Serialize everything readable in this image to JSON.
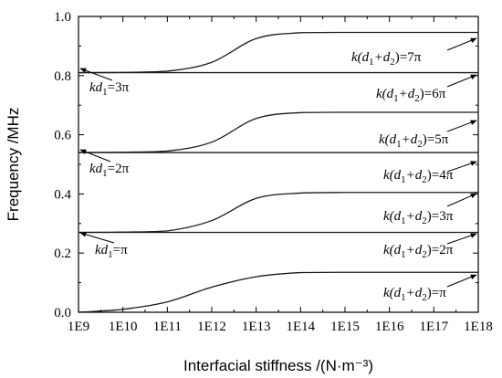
{
  "chart_data": {
    "type": "line",
    "title": "",
    "xlabel": "Interfacial stiffness /(N·m⁻³)",
    "ylabel": "Frequency /MHz",
    "xscale": "log",
    "xlim": [
      1000000000.0,
      1e+18
    ],
    "ylim": [
      0.0,
      1.0
    ],
    "grid": false,
    "x_tick_labels": [
      "1E9",
      "1E10",
      "1E11",
      "1E12",
      "1E13",
      "1E14",
      "1E15",
      "1E16",
      "1E17",
      "1E18"
    ],
    "y_tick_labels": [
      "0.0",
      "0.2",
      "0.4",
      "0.6",
      "0.8",
      "1.0"
    ],
    "series": [
      {
        "x": [
          1000000000.0,
          10000000000.0,
          100000000000.0,
          1000000000000.0,
          10000000000000.0,
          100000000000000.0,
          1000000000000000.0,
          1e+16,
          1e+17,
          1e+18
        ],
        "y": [
          0.0,
          0.01,
          0.035,
          0.085,
          0.12,
          0.134,
          0.135,
          0.135,
          0.135,
          0.135
        ]
      },
      {
        "x": [
          1000000000.0,
          1e+18
        ],
        "y": [
          0.27,
          0.27
        ]
      },
      {
        "x": [
          1000000000.0,
          10000000000.0,
          100000000000.0,
          1000000000000.0,
          10000000000000.0,
          100000000000000.0,
          1000000000000000.0,
          1e+16,
          1e+17,
          1e+18
        ],
        "y": [
          0.27,
          0.271,
          0.275,
          0.31,
          0.385,
          0.403,
          0.405,
          0.405,
          0.405,
          0.405
        ]
      },
      {
        "x": [
          1000000000.0,
          1e+18
        ],
        "y": [
          0.54,
          0.54
        ]
      },
      {
        "x": [
          1000000000.0,
          10000000000.0,
          100000000000.0,
          1000000000000.0,
          10000000000000.0,
          100000000000000.0,
          1000000000000000.0,
          1e+16,
          1e+17,
          1e+18
        ],
        "y": [
          0.54,
          0.541,
          0.545,
          0.575,
          0.655,
          0.675,
          0.676,
          0.676,
          0.676,
          0.676
        ]
      },
      {
        "x": [
          1000000000.0,
          1e+18
        ],
        "y": [
          0.81,
          0.81
        ]
      },
      {
        "x": [
          1000000000.0,
          10000000000.0,
          100000000000.0,
          1000000000000.0,
          10000000000000.0,
          100000000000000.0,
          1000000000000000.0,
          1e+16,
          1e+17,
          1e+18
        ],
        "y": [
          0.81,
          0.811,
          0.815,
          0.845,
          0.925,
          0.945,
          0.946,
          0.946,
          0.946,
          0.946
        ]
      }
    ],
    "annotations": [
      {
        "parts": [
          [
            "k",
            ""
          ],
          [
            "d",
            "sub"
          ],
          [
            "1",
            ""
          ],
          [
            "=3π",
            "up"
          ]
        ],
        "sample": "kd1=3π"
      },
      {
        "parts": [
          [
            "k",
            ""
          ],
          [
            "d",
            "sub"
          ],
          [
            "1",
            ""
          ],
          [
            "=2π",
            "up"
          ]
        ],
        "sample": "kd1=2π"
      },
      {
        "parts": [
          [
            "k",
            ""
          ],
          [
            "d",
            "sub"
          ],
          [
            "1",
            ""
          ],
          [
            "=π",
            "up"
          ]
        ],
        "sample": "kd1=π"
      },
      {
        "parts": [
          [
            "k(",
            ""
          ],
          [
            "d",
            "sub"
          ],
          [
            "1",
            ""
          ],
          [
            "+",
            ""
          ],
          [
            "d",
            "sub"
          ],
          [
            "2",
            ""
          ],
          [
            ")=7π",
            "up"
          ]
        ],
        "sample": "k(d1+d2)=7π"
      },
      {
        "parts": [
          [
            "k(",
            ""
          ],
          [
            "d",
            "sub"
          ],
          [
            "1",
            ""
          ],
          [
            "+",
            ""
          ],
          [
            "d",
            "sub"
          ],
          [
            "2",
            ""
          ],
          [
            ")=6π",
            "up"
          ]
        ],
        "sample": "k(d1+d2)=6π"
      },
      {
        "parts": [
          [
            "k(",
            ""
          ],
          [
            "d",
            "sub"
          ],
          [
            "1",
            ""
          ],
          [
            "+",
            ""
          ],
          [
            "d",
            "sub"
          ],
          [
            "2",
            ""
          ],
          [
            ")=5π",
            "up"
          ]
        ],
        "sample": "k(d1+d2)=5π"
      },
      {
        "parts": [
          [
            "k(",
            ""
          ],
          [
            "d",
            "sub"
          ],
          [
            "1",
            ""
          ],
          [
            "+",
            ""
          ],
          [
            "d",
            "sub"
          ],
          [
            "2",
            ""
          ],
          [
            ")=4π",
            "up"
          ]
        ],
        "sample": "k(d1+d2)=4π"
      },
      {
        "parts": [
          [
            "k(",
            ""
          ],
          [
            "d",
            "sub"
          ],
          [
            "1",
            ""
          ],
          [
            "+",
            ""
          ],
          [
            "d",
            "sub"
          ],
          [
            "2",
            ""
          ],
          [
            ")=3π",
            "up"
          ]
        ],
        "sample": "k(d1+d2)=3π"
      },
      {
        "parts": [
          [
            "k(",
            ""
          ],
          [
            "d",
            "sub"
          ],
          [
            "1",
            ""
          ],
          [
            "+",
            ""
          ],
          [
            "d",
            "sub"
          ],
          [
            "2",
            ""
          ],
          [
            ")=2π",
            "up"
          ]
        ],
        "sample": "k(d1+d2)=2π"
      },
      {
        "parts": [
          [
            "k(",
            ""
          ],
          [
            "d",
            "sub"
          ],
          [
            "1",
            ""
          ],
          [
            "+",
            ""
          ],
          [
            "d",
            "sub"
          ],
          [
            "2",
            ""
          ],
          [
            ")=π",
            "up"
          ]
        ],
        "sample": "k(d1+d2)=π"
      }
    ]
  }
}
